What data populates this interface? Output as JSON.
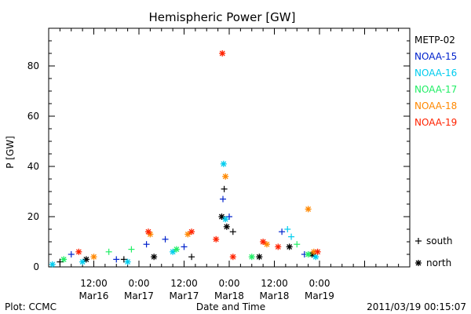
{
  "chart_data": {
    "type": "scatter",
    "title": "Hemispheric Power [GW]",
    "ylabel": "P [GW]",
    "xlabel": "Date and Time",
    "ylim": [
      0,
      95
    ],
    "xlim": [
      "2011-03-15 00:00",
      "2011-03-19 00:00"
    ],
    "yticks": [
      0,
      20,
      40,
      60,
      80
    ],
    "yticks_labels": [
      "0",
      "20",
      "40",
      "60",
      "80"
    ],
    "xticks": [
      {
        "time": "12:00",
        "date": "Mar16",
        "at": "2011-03-15 12:00"
      },
      {
        "time": "0:00",
        "date": "Mar17",
        "at": "2011-03-16 00:00"
      },
      {
        "time": "12:00",
        "date": "Mar17",
        "at": "2011-03-16 12:00"
      },
      {
        "time": "0:00",
        "date": "Mar18",
        "at": "2011-03-17 00:00"
      },
      {
        "time": "12:00",
        "date": "Mar18",
        "at": "2011-03-17 12:00"
      },
      {
        "time": "0:00",
        "date": "Mar19",
        "at": "2011-03-18 00:00"
      }
    ],
    "marker_legend": [
      {
        "symbol": "+",
        "label": "south"
      },
      {
        "symbol": "*",
        "label": "north"
      }
    ],
    "series": [
      {
        "name": "METP-02",
        "color": "#000000",
        "points": [
          {
            "x": "2011-03-15 03:00",
            "y": 2,
            "m": "+"
          },
          {
            "x": "2011-03-15 10:00",
            "y": 3,
            "m": "*"
          },
          {
            "x": "2011-03-15 20:00",
            "y": 3,
            "m": "+"
          },
          {
            "x": "2011-03-16 04:00",
            "y": 4,
            "m": "*"
          },
          {
            "x": "2011-03-16 14:00",
            "y": 4,
            "m": "+"
          },
          {
            "x": "2011-03-16 22:00",
            "y": 20,
            "m": "*"
          },
          {
            "x": "2011-03-16 22:40",
            "y": 31,
            "m": "+"
          },
          {
            "x": "2011-03-16 23:20",
            "y": 16,
            "m": "*"
          },
          {
            "x": "2011-03-17 01:00",
            "y": 14,
            "m": "+"
          },
          {
            "x": "2011-03-17 08:00",
            "y": 4,
            "m": "*"
          },
          {
            "x": "2011-03-17 16:00",
            "y": 8,
            "m": "*"
          },
          {
            "x": "2011-03-17 22:00",
            "y": 5,
            "m": "*"
          }
        ]
      },
      {
        "name": "NOAA-15",
        "color": "#0022cc",
        "points": [
          {
            "x": "2011-03-15 06:00",
            "y": 5,
            "m": "+"
          },
          {
            "x": "2011-03-15 18:00",
            "y": 3,
            "m": "+"
          },
          {
            "x": "2011-03-16 02:00",
            "y": 9,
            "m": "+"
          },
          {
            "x": "2011-03-16 07:00",
            "y": 11,
            "m": "+"
          },
          {
            "x": "2011-03-16 12:00",
            "y": 8,
            "m": "+"
          },
          {
            "x": "2011-03-16 22:20",
            "y": 27,
            "m": "+"
          },
          {
            "x": "2011-03-17 00:00",
            "y": 20,
            "m": "+"
          },
          {
            "x": "2011-03-17 14:00",
            "y": 14,
            "m": "+"
          },
          {
            "x": "2011-03-17 20:00",
            "y": 5,
            "m": "+"
          }
        ]
      },
      {
        "name": "NOAA-16",
        "color": "#00ccee",
        "points": [
          {
            "x": "2011-03-15 01:00",
            "y": 1,
            "m": "*"
          },
          {
            "x": "2011-03-15 09:00",
            "y": 2,
            "m": "*"
          },
          {
            "x": "2011-03-15 21:00",
            "y": 2,
            "m": "*"
          },
          {
            "x": "2011-03-16 09:00",
            "y": 6,
            "m": "*"
          },
          {
            "x": "2011-03-16 22:30",
            "y": 41,
            "m": "*"
          },
          {
            "x": "2011-03-16 23:00",
            "y": 19,
            "m": "*"
          },
          {
            "x": "2011-03-17 15:30",
            "y": 15,
            "m": "+"
          },
          {
            "x": "2011-03-17 16:30",
            "y": 12,
            "m": "+"
          },
          {
            "x": "2011-03-17 23:00",
            "y": 4,
            "m": "*"
          }
        ]
      },
      {
        "name": "NOAA-17",
        "color": "#22ee66",
        "points": [
          {
            "x": "2011-03-15 04:00",
            "y": 3,
            "m": "*"
          },
          {
            "x": "2011-03-15 16:00",
            "y": 6,
            "m": "+"
          },
          {
            "x": "2011-03-15 22:00",
            "y": 7,
            "m": "+"
          },
          {
            "x": "2011-03-16 10:00",
            "y": 7,
            "m": "*"
          },
          {
            "x": "2011-03-17 06:00",
            "y": 4,
            "m": "*"
          },
          {
            "x": "2011-03-17 18:00",
            "y": 9,
            "m": "+"
          },
          {
            "x": "2011-03-17 21:00",
            "y": 5,
            "m": "*"
          }
        ]
      },
      {
        "name": "NOAA-18",
        "color": "#ff8800",
        "points": [
          {
            "x": "2011-03-15 12:00",
            "y": 4,
            "m": "*"
          },
          {
            "x": "2011-03-16 03:00",
            "y": 13,
            "m": "*"
          },
          {
            "x": "2011-03-16 13:00",
            "y": 13,
            "m": "*"
          },
          {
            "x": "2011-03-16 23:00",
            "y": 36,
            "m": "*"
          },
          {
            "x": "2011-03-17 10:00",
            "y": 9,
            "m": "*"
          },
          {
            "x": "2011-03-17 21:00",
            "y": 23,
            "m": "*"
          },
          {
            "x": "2011-03-17 22:30",
            "y": 6,
            "m": "*"
          }
        ]
      },
      {
        "name": "NOAA-19",
        "color": "#ff2200",
        "points": [
          {
            "x": "2011-03-15 08:00",
            "y": 6,
            "m": "*"
          },
          {
            "x": "2011-03-16 02:30",
            "y": 14,
            "m": "*"
          },
          {
            "x": "2011-03-16 14:00",
            "y": 14,
            "m": "*"
          },
          {
            "x": "2011-03-16 20:30",
            "y": 11,
            "m": "*"
          },
          {
            "x": "2011-03-16 22:10",
            "y": 85,
            "m": "*"
          },
          {
            "x": "2011-03-17 01:00",
            "y": 4,
            "m": "*"
          },
          {
            "x": "2011-03-17 09:00",
            "y": 10,
            "m": "*"
          },
          {
            "x": "2011-03-17 13:00",
            "y": 8,
            "m": "*"
          },
          {
            "x": "2011-03-17 23:30",
            "y": 6,
            "m": "*"
          }
        ]
      }
    ]
  },
  "footer": {
    "left": "Plot: CCMC",
    "right": "2011/03/19 00:15:07"
  }
}
